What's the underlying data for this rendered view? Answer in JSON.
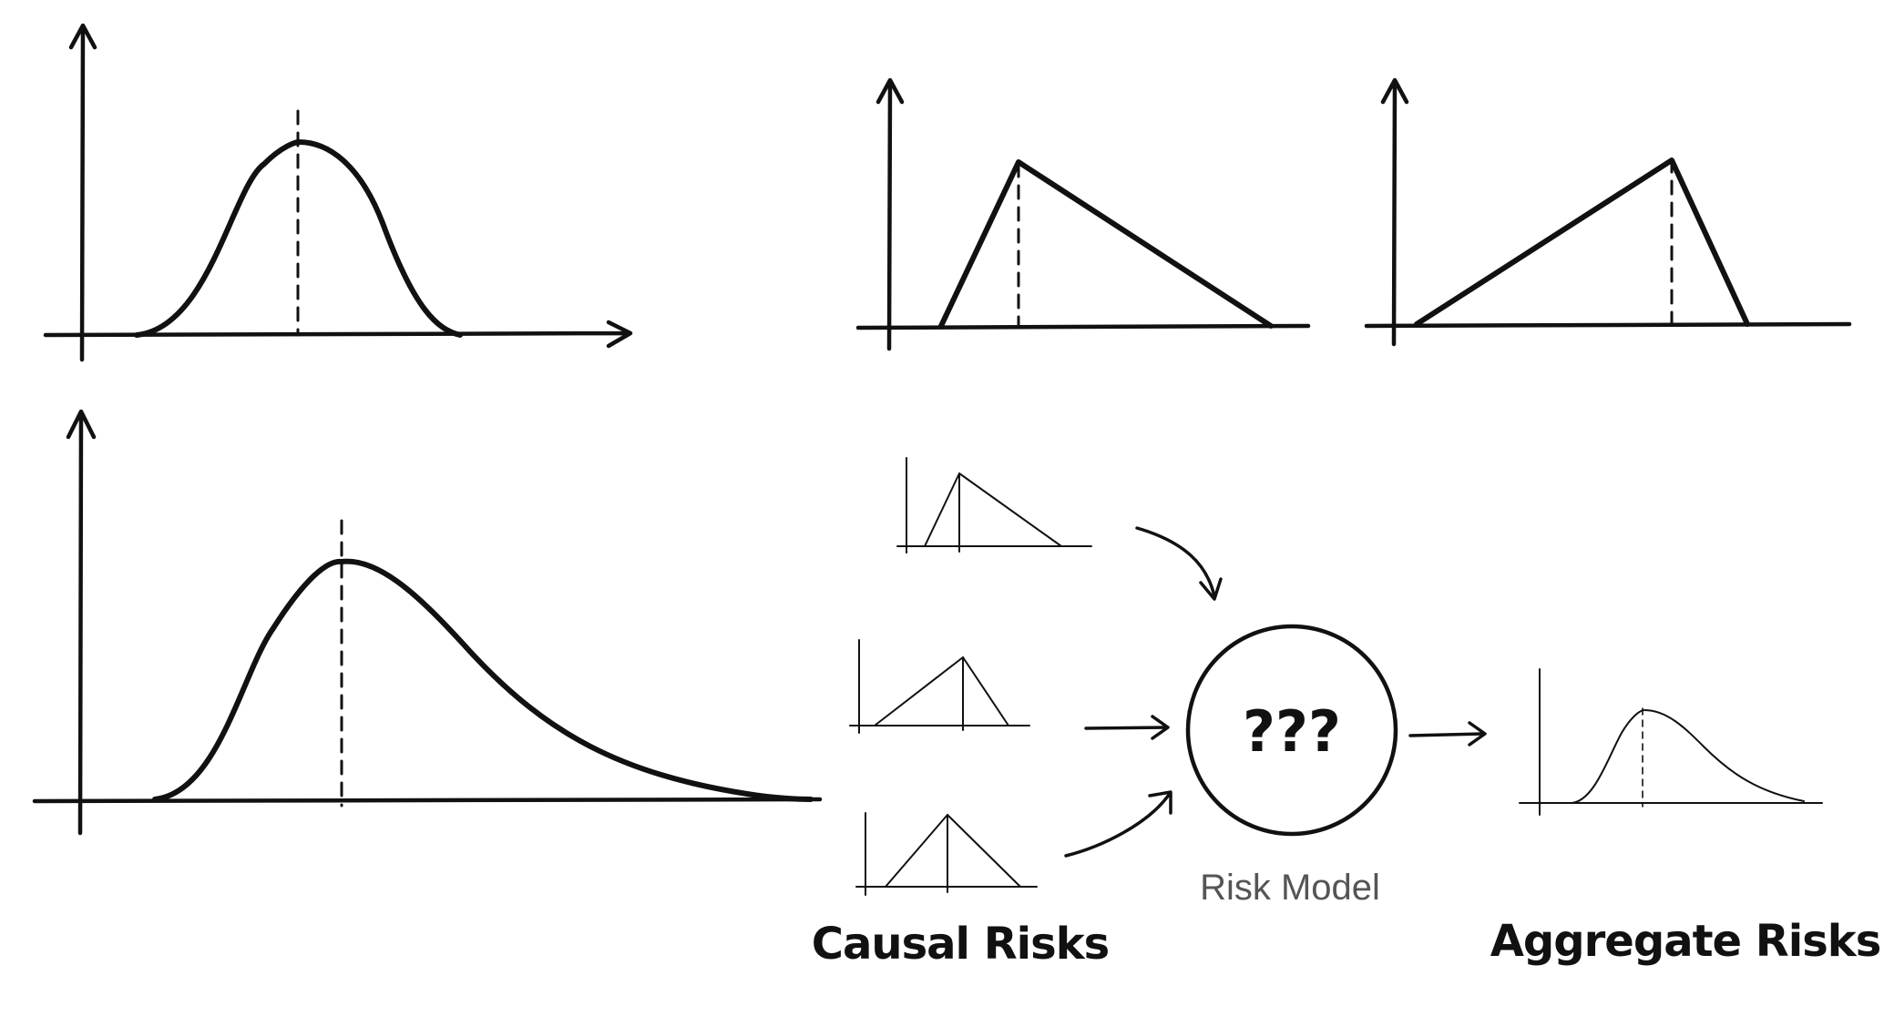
{
  "labels": {
    "model_symbol": "???",
    "model_label": "Risk Model",
    "causal_label": "Causal Risks",
    "aggregate_label": "Aggregate Risks"
  },
  "panels": [
    {
      "id": "symmetric-bell",
      "shape": "bell"
    },
    {
      "id": "skewed-bell",
      "shape": "right-skewed bell"
    },
    {
      "id": "triangle-left-peak",
      "shape": "triangle"
    },
    {
      "id": "triangle-right-peak",
      "shape": "triangle"
    }
  ],
  "flow": {
    "inputs": [
      "triangle",
      "triangle",
      "triangle"
    ],
    "output": "right-skewed bell"
  },
  "colors": {
    "ink": "#111111",
    "label_gray": "#555555",
    "background": "#ffffff"
  }
}
